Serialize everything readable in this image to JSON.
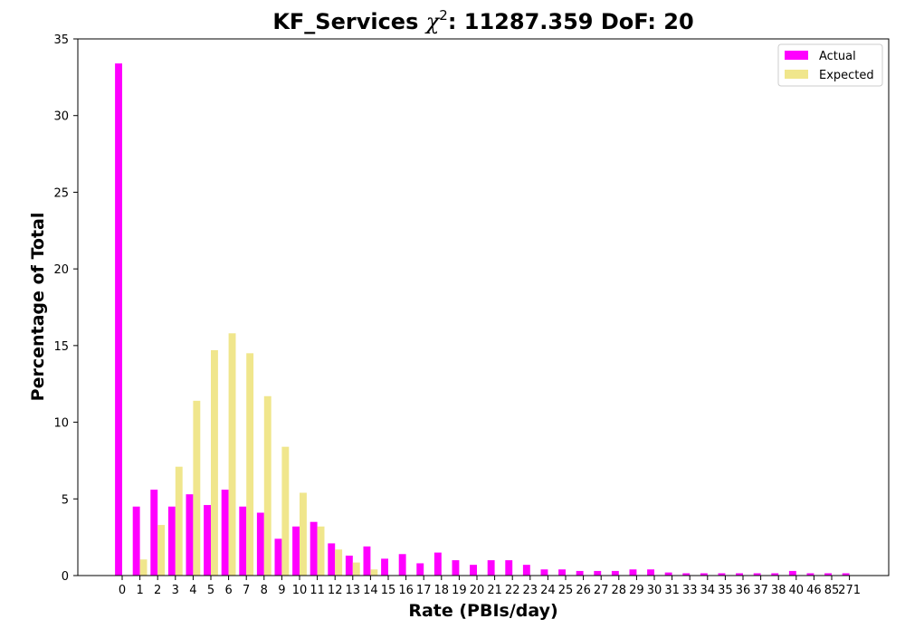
{
  "chart_data": {
    "type": "bar",
    "title_prefix": "KF_Services ",
    "title_chi": "χ",
    "title_sup": "2",
    "title_suffix": ": 11287.359 DoF: 20",
    "xlabel": "Rate (PBIs/day)",
    "ylabel": "Percentage of Total",
    "ylim": [
      0,
      35
    ],
    "yticks": [
      0,
      5,
      10,
      15,
      20,
      25,
      30,
      35
    ],
    "grid": false,
    "legend_position": "top-right",
    "categories": [
      "0",
      "1",
      "2",
      "3",
      "4",
      "5",
      "6",
      "7",
      "8",
      "9",
      "10",
      "11",
      "12",
      "13",
      "14",
      "15",
      "16",
      "17",
      "18",
      "19",
      "20",
      "21",
      "22",
      "23",
      "24",
      "25",
      "26",
      "27",
      "28",
      "29",
      "30",
      "31",
      "33",
      "34",
      "35",
      "36",
      "37",
      "38",
      "40",
      "46",
      "85",
      "271"
    ],
    "series": [
      {
        "name": "Actual",
        "color": "#ff00ff",
        "values": [
          33.4,
          4.5,
          5.6,
          4.5,
          5.3,
          4.6,
          5.6,
          4.5,
          4.1,
          2.4,
          3.2,
          3.5,
          2.1,
          1.3,
          1.9,
          1.1,
          1.4,
          0.8,
          1.5,
          1.0,
          0.7,
          1.0,
          1.0,
          0.7,
          0.4,
          0.4,
          0.3,
          0.3,
          0.3,
          0.4,
          0.4,
          0.2,
          0.15,
          0.15,
          0.15,
          0.15,
          0.15,
          0.15,
          0.3,
          0.15,
          0.15,
          0.15
        ]
      },
      {
        "name": "Expected",
        "color": "#f0e68c",
        "values": [
          0,
          1.05,
          3.3,
          7.1,
          11.4,
          14.7,
          15.8,
          14.5,
          11.7,
          8.4,
          5.4,
          3.2,
          1.7,
          0.85,
          0.4,
          0,
          0,
          0,
          0,
          0,
          0,
          0,
          0,
          0,
          0,
          0,
          0,
          0,
          0,
          0,
          0,
          0,
          0,
          0,
          0,
          0,
          0,
          0,
          0,
          0,
          0,
          0
        ]
      }
    ]
  }
}
